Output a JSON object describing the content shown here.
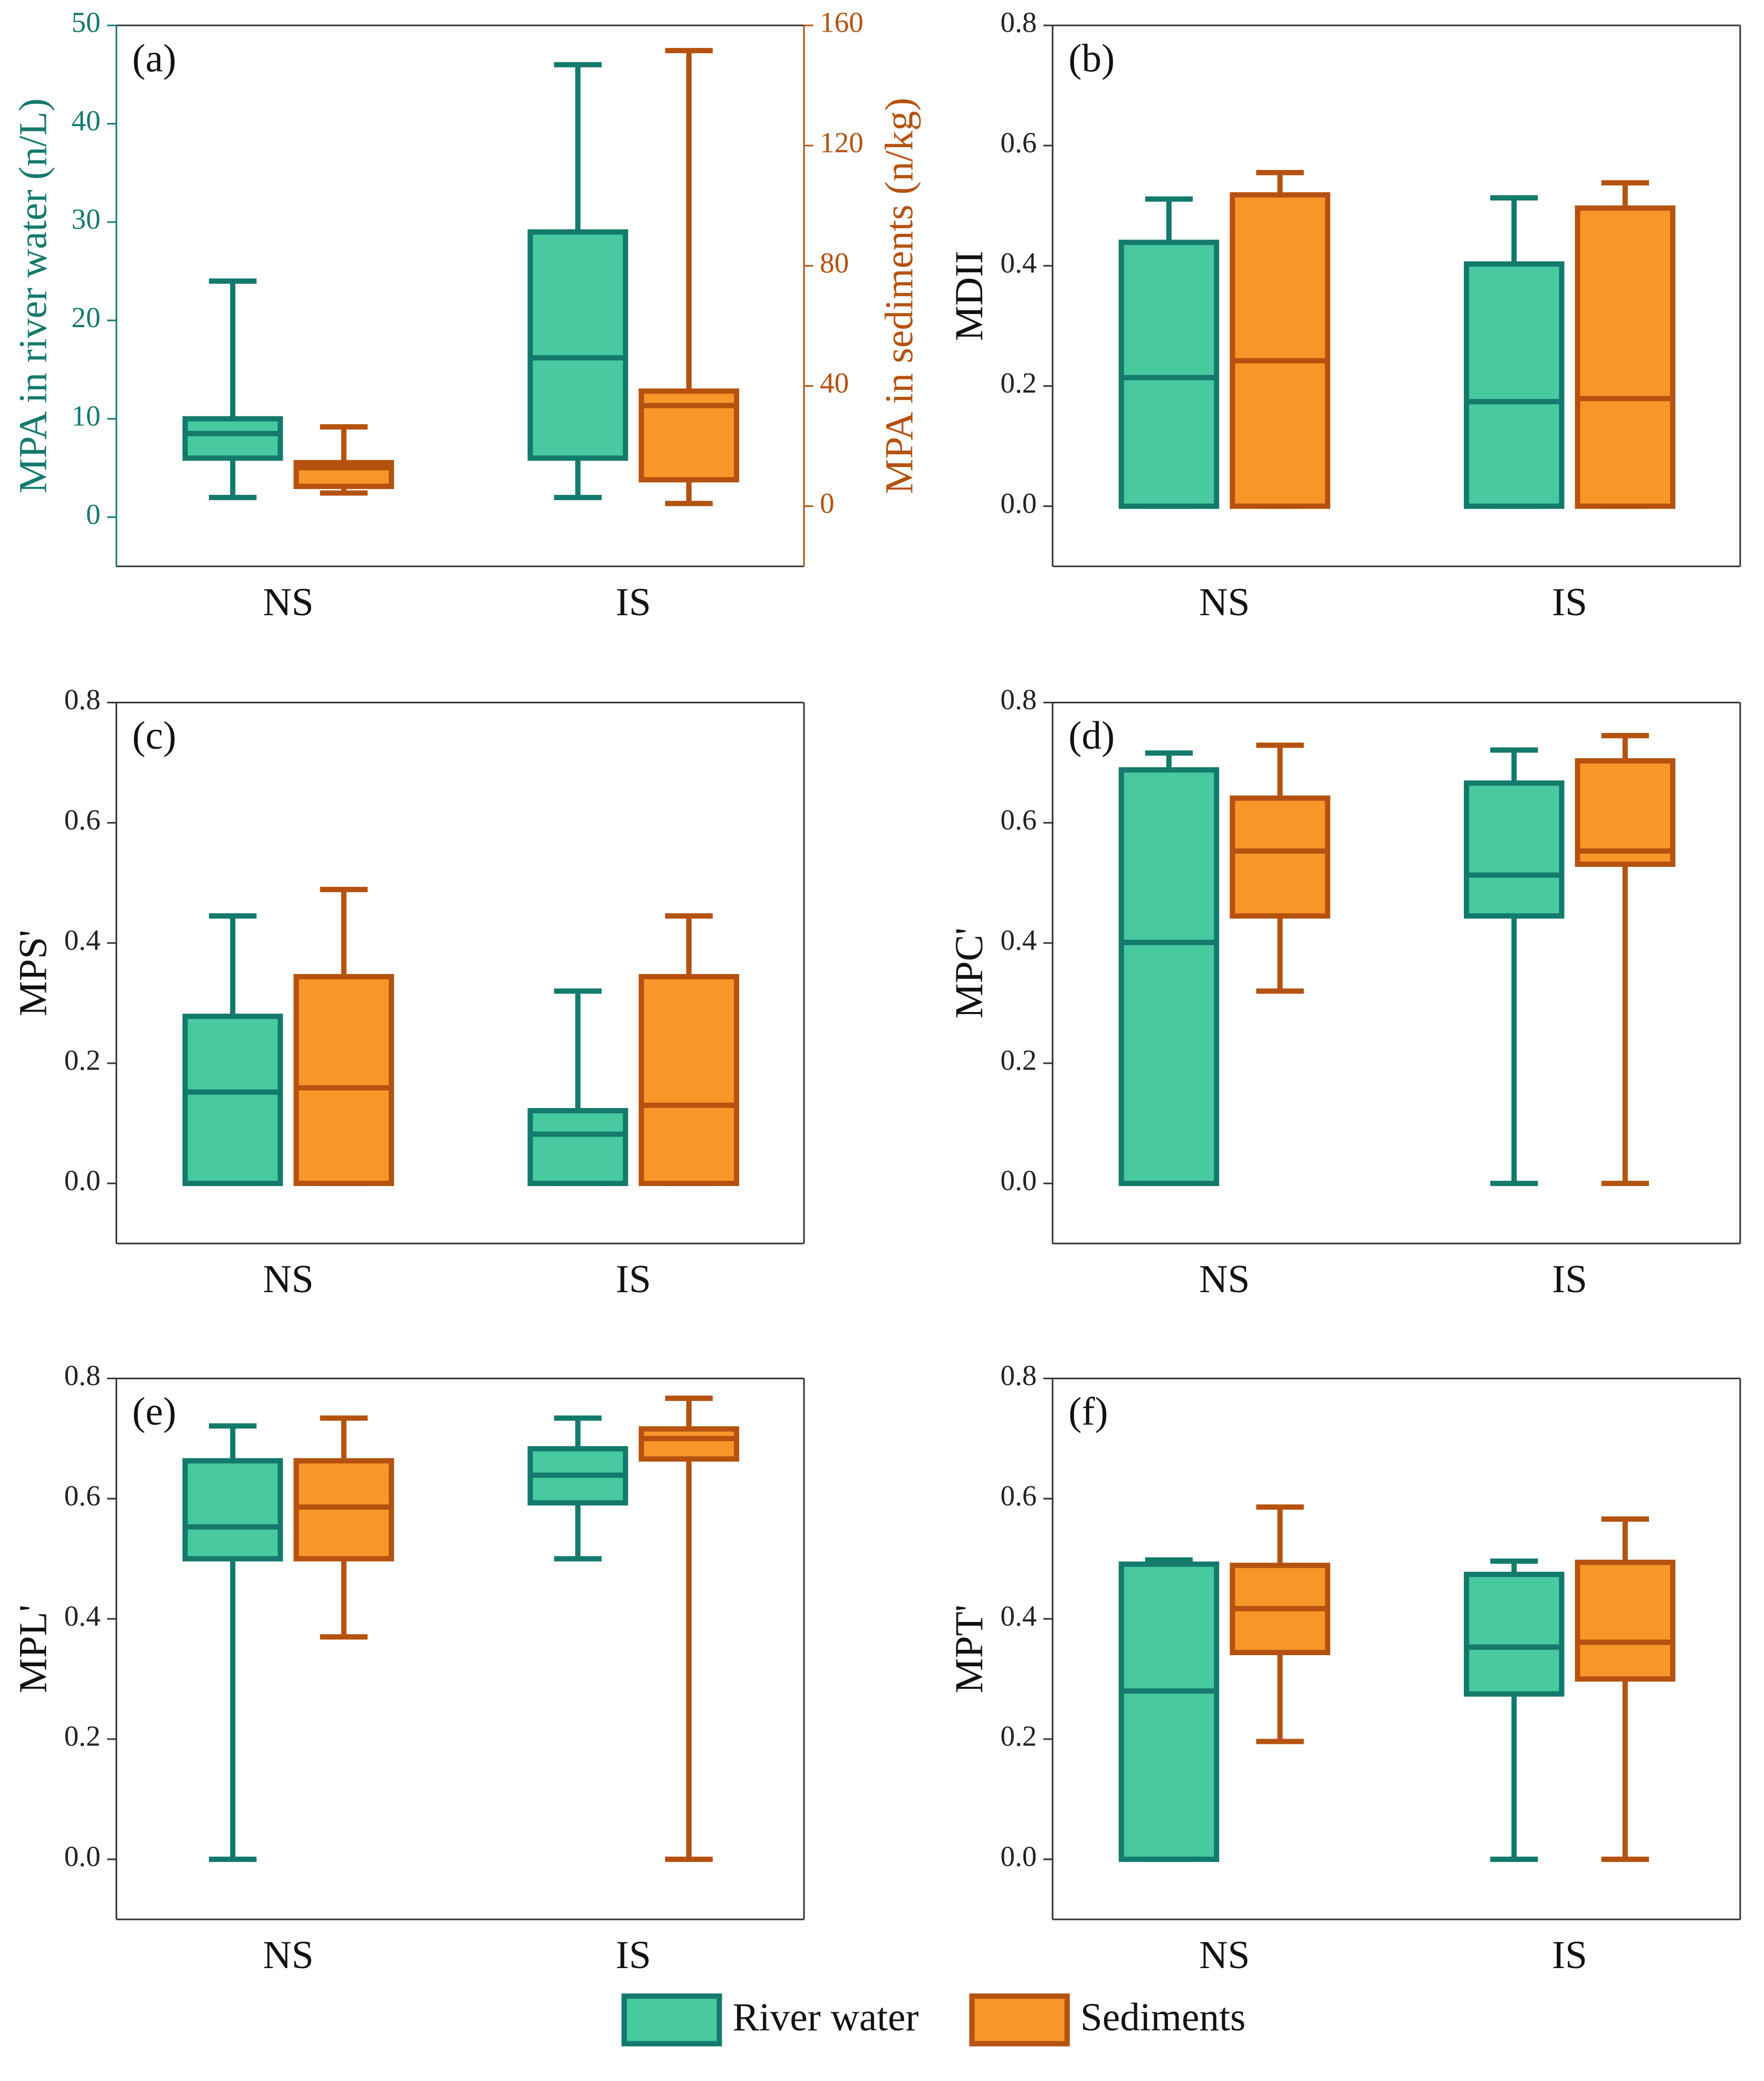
{
  "chart_data": [
    {
      "type": "box",
      "panel_label": "(a)",
      "y_label": "MPA in river water (n/L)",
      "y2_label": "MPA in sediments (n/kg)",
      "categories": [
        "NS",
        "IS"
      ],
      "ylim": [
        -5,
        50
      ],
      "yticks": [
        0,
        10,
        20,
        30,
        40,
        50
      ],
      "y2lim": [
        -20,
        160
      ],
      "y2ticks": [
        0,
        40,
        80,
        120,
        160
      ],
      "series": [
        {
          "name": "River water",
          "color": "#48c9a0",
          "edgecolor": "#137a6c",
          "values": [
            {
              "min": 2,
              "q1": 6,
              "median": 8.5,
              "q3": 10,
              "max": 24
            },
            {
              "min": 2,
              "q1": 6,
              "median": 16.2,
              "q3": 29,
              "max": 46
            }
          ]
        },
        {
          "name": "Sediments",
          "color": "#f9962a",
          "edgecolor": "#b5520f",
          "axis": "y2",
          "values": [
            {
              "min": 4.4,
              "q1": 6.6,
              "median": 12.8,
              "q3": 14.5,
              "max": 26.4
            },
            {
              "min": 0.9,
              "q1": 8.8,
              "median": 33.5,
              "q3": 38.3,
              "max": 151.6
            }
          ]
        }
      ]
    },
    {
      "type": "box",
      "panel_label": "(b)",
      "y_label": "MDII",
      "categories": [
        "NS",
        "IS"
      ],
      "ylim": [
        -0.1,
        0.8
      ],
      "yticks": [
        {
          "value": 0,
          "label": "0.0"
        },
        {
          "value": 0.2,
          "label": "0.2"
        },
        {
          "value": 0.4,
          "label": "0.4"
        },
        {
          "value": 0.6,
          "label": "0.6"
        },
        {
          "value": 0.8,
          "label": "0.8"
        }
      ],
      "series": [
        {
          "color": "#48c9a0",
          "edgecolor": "#137a6c",
          "values": [
            {
              "min": 0,
              "q1": 0,
              "median": 0.214,
              "q3": 0.439,
              "max": 0.511
            },
            {
              "min": 0,
              "q1": 0,
              "median": 0.174,
              "q3": 0.403,
              "max": 0.513
            }
          ]
        },
        {
          "color": "#f9962a",
          "edgecolor": "#b5520f",
          "values": [
            {
              "min": 0,
              "q1": 0,
              "median": 0.242,
              "q3": 0.518,
              "max": 0.555
            },
            {
              "min": 0,
              "q1": 0,
              "median": 0.179,
              "q3": 0.496,
              "max": 0.538
            }
          ]
        }
      ]
    },
    {
      "type": "box",
      "panel_label": "(c)",
      "y_label": "MPS'",
      "categories": [
        "NS",
        "IS"
      ],
      "ylim": [
        -0.1,
        0.8
      ],
      "yticks": [
        {
          "value": 0,
          "label": "0.0"
        },
        {
          "value": 0.2,
          "label": "0.2"
        },
        {
          "value": 0.4,
          "label": "0.4"
        },
        {
          "value": 0.6,
          "label": "0.6"
        },
        {
          "value": 0.8,
          "label": "0.8"
        }
      ],
      "series": [
        {
          "color": "#48c9a0",
          "edgecolor": "#137a6c",
          "values": [
            {
              "min": 0,
              "q1": 0,
              "median": 0.152,
              "q3": 0.278,
              "max": 0.445
            },
            {
              "min": 0,
              "q1": 0,
              "median": 0.082,
              "q3": 0.121,
              "max": 0.32
            }
          ]
        },
        {
          "color": "#f9962a",
          "edgecolor": "#b5520f",
          "values": [
            {
              "min": 0,
              "q1": 0,
              "median": 0.159,
              "q3": 0.344,
              "max": 0.489
            },
            {
              "min": 0,
              "q1": 0,
              "median": 0.13,
              "q3": 0.344,
              "max": 0.445
            }
          ]
        }
      ]
    },
    {
      "type": "box",
      "panel_label": "(d)",
      "y_label": "MPC'",
      "categories": [
        "NS",
        "IS"
      ],
      "ylim": [
        -0.1,
        0.8
      ],
      "yticks": [
        {
          "value": 0,
          "label": "0.0"
        },
        {
          "value": 0.2,
          "label": "0.2"
        },
        {
          "value": 0.4,
          "label": "0.4"
        },
        {
          "value": 0.6,
          "label": "0.6"
        },
        {
          "value": 0.8,
          "label": "0.8"
        }
      ],
      "series": [
        {
          "color": "#48c9a0",
          "edgecolor": "#137a6c",
          "values": [
            {
              "min": 0,
              "q1": 0,
              "median": 0.401,
              "q3": 0.688,
              "max": 0.716
            },
            {
              "min": 0,
              "q1": 0.445,
              "median": 0.513,
              "q3": 0.666,
              "max": 0.721
            }
          ]
        },
        {
          "color": "#f9962a",
          "edgecolor": "#b5520f",
          "values": [
            {
              "min": 0.32,
              "q1": 0.445,
              "median": 0.553,
              "q3": 0.641,
              "max": 0.729
            },
            {
              "min": 0,
              "q1": 0.531,
              "median": 0.553,
              "q3": 0.703,
              "max": 0.745
            }
          ]
        }
      ]
    },
    {
      "type": "box",
      "panel_label": "(e)",
      "y_label": "MPL'",
      "categories": [
        "NS",
        "IS"
      ],
      "ylim": [
        -0.1,
        0.8
      ],
      "yticks": [
        {
          "value": 0,
          "label": "0.0"
        },
        {
          "value": 0.2,
          "label": "0.2"
        },
        {
          "value": 0.4,
          "label": "0.4"
        },
        {
          "value": 0.6,
          "label": "0.6"
        },
        {
          "value": 0.8,
          "label": "0.8"
        }
      ],
      "series": [
        {
          "color": "#48c9a0",
          "edgecolor": "#137a6c",
          "values": [
            {
              "min": 0,
              "q1": 0.5,
              "median": 0.553,
              "q3": 0.663,
              "max": 0.721
            },
            {
              "min": 0.5,
              "q1": 0.593,
              "median": 0.639,
              "q3": 0.683,
              "max": 0.734
            }
          ]
        },
        {
          "color": "#f9962a",
          "edgecolor": "#b5520f",
          "values": [
            {
              "min": 0.37,
              "q1": 0.5,
              "median": 0.586,
              "q3": 0.663,
              "max": 0.734
            },
            {
              "min": 0,
              "q1": 0.666,
              "median": 0.7,
              "q3": 0.716,
              "max": 0.767
            }
          ]
        }
      ]
    },
    {
      "type": "box",
      "panel_label": "(f)",
      "y_label": "MPT'",
      "categories": [
        "NS",
        "IS"
      ],
      "ylim": [
        -0.1,
        0.8
      ],
      "yticks": [
        {
          "value": 0,
          "label": "0.0"
        },
        {
          "value": 0.2,
          "label": "0.2"
        },
        {
          "value": 0.4,
          "label": "0.4"
        },
        {
          "value": 0.6,
          "label": "0.6"
        },
        {
          "value": 0.8,
          "label": "0.8"
        }
      ],
      "series": [
        {
          "color": "#48c9a0",
          "edgecolor": "#137a6c",
          "values": [
            {
              "min": 0,
              "q1": 0,
              "median": 0.28,
              "q3": 0.491,
              "max": 0.498
            },
            {
              "min": 0,
              "q1": 0.275,
              "median": 0.353,
              "q3": 0.474,
              "max": 0.496
            }
          ]
        },
        {
          "color": "#f9962a",
          "edgecolor": "#b5520f",
          "values": [
            {
              "min": 0.196,
              "q1": 0.344,
              "median": 0.417,
              "q3": 0.489,
              "max": 0.586
            },
            {
              "min": 0,
              "q1": 0.3,
              "median": 0.361,
              "q3": 0.494,
              "max": 0.566
            }
          ]
        }
      ]
    }
  ]
}
